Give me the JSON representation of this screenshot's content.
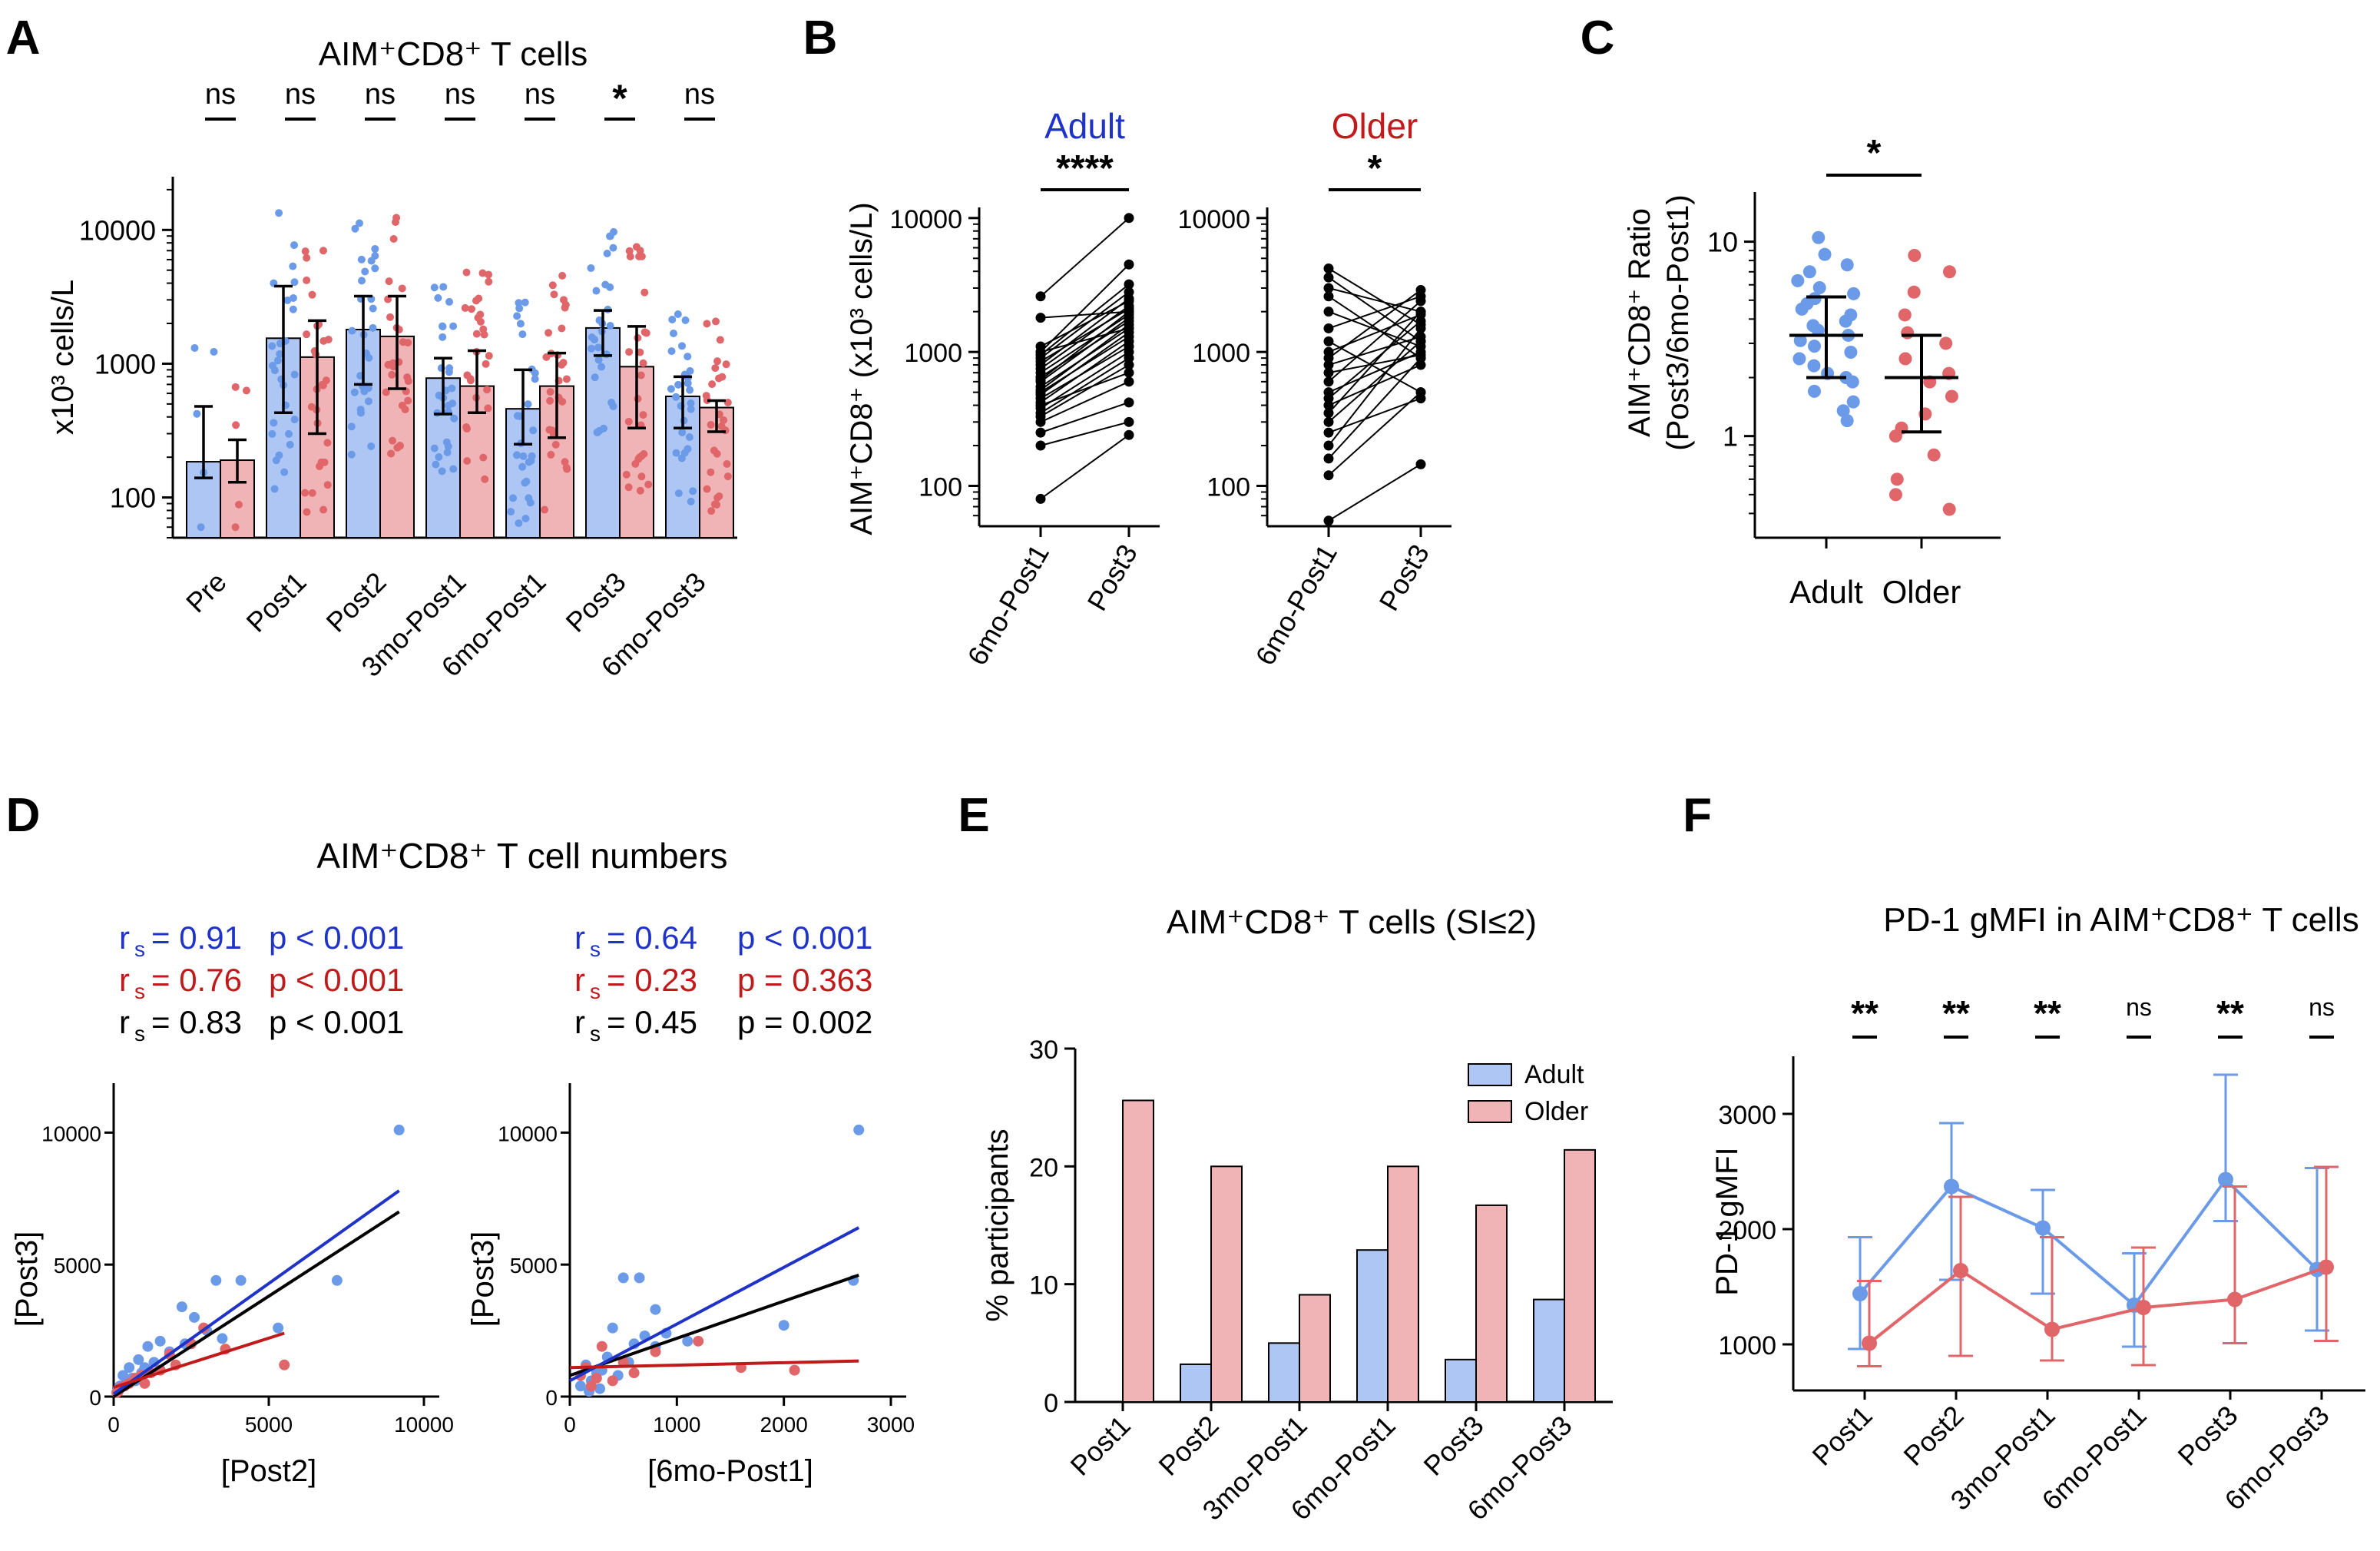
{
  "colors": {
    "adult": "#6a9ae8",
    "adult_bar": "#aec6f4",
    "adult_line": "#1f33c9",
    "older": "#e0666a",
    "older_bar": "#f0b4b6",
    "older_line": "#c01a1a",
    "black": "#000000"
  },
  "chart_data": [
    {
      "panel": "A",
      "type": "bar",
      "title": "AIM⁺CD8⁺ T cells",
      "ylabel": "x10³ cells/L",
      "yscale": "log",
      "ylim": [
        50,
        25000
      ],
      "yticks": [
        100,
        1000,
        10000
      ],
      "ytick_labels": [
        "100",
        "1000",
        "10000"
      ],
      "categories": [
        "Pre",
        "Post1",
        "Post2",
        "3mo-Post1",
        "6mo-Post1",
        "Post3",
        "6mo-Post3"
      ],
      "series": [
        {
          "name": "Adult",
          "values": [
            185,
            1550,
            1800,
            780,
            460,
            1850,
            570
          ],
          "err_low": [
            140,
            430,
            700,
            420,
            250,
            1150,
            330
          ],
          "err_high": [
            480,
            3800,
            3200,
            1100,
            900,
            2500,
            800
          ]
        },
        {
          "name": "Older",
          "values": [
            190,
            1120,
            1600,
            680,
            680,
            950,
            470
          ],
          "err_low": [
            130,
            300,
            650,
            430,
            280,
            330,
            310
          ],
          "err_high": [
            270,
            2100,
            3200,
            1250,
            1200,
            1900,
            530
          ]
        }
      ],
      "significance": [
        "ns",
        "ns",
        "ns",
        "ns",
        "ns",
        "*",
        "ns"
      ]
    },
    {
      "panel": "B",
      "type": "line",
      "ylabel": "AIM⁺CD8⁺ (x10³ cells/L)",
      "yscale": "log",
      "ylim": [
        50,
        12000
      ],
      "yticks": [
        100,
        1000,
        10000
      ],
      "ytick_labels": [
        "100",
        "1000",
        "10000"
      ],
      "categories": [
        "6mo-Post1",
        "Post3"
      ],
      "groups": [
        {
          "name": "Adult",
          "significance": "****",
          "pairs": [
            [
              80,
              240
            ],
            [
              200,
              300
            ],
            [
              250,
              420
            ],
            [
              300,
              600
            ],
            [
              330,
              800
            ],
            [
              350,
              900
            ],
            [
              380,
              1000
            ],
            [
              400,
              700
            ],
            [
              420,
              1200
            ],
            [
              450,
              1100
            ],
            [
              480,
              1400
            ],
            [
              500,
              1300
            ],
            [
              520,
              1600
            ],
            [
              550,
              1500
            ],
            [
              600,
              1800
            ],
            [
              620,
              2000
            ],
            [
              650,
              1700
            ],
            [
              700,
              1900
            ],
            [
              750,
              2200
            ],
            [
              800,
              2500
            ],
            [
              850,
              2100
            ],
            [
              900,
              2800
            ],
            [
              950,
              3200
            ],
            [
              1000,
              4500
            ],
            [
              1000,
              1500
            ],
            [
              1100,
              2400
            ],
            [
              1800,
              2000
            ],
            [
              2600,
              10000
            ]
          ]
        },
        {
          "name": "Older",
          "significance": "*",
          "pairs": [
            [
              55,
              145
            ],
            [
              120,
              500
            ],
            [
              160,
              900
            ],
            [
              200,
              1500
            ],
            [
              250,
              450
            ],
            [
              300,
              1200
            ],
            [
              350,
              2000
            ],
            [
              400,
              800
            ],
            [
              450,
              1700
            ],
            [
              500,
              1000
            ],
            [
              600,
              2400
            ],
            [
              700,
              950
            ],
            [
              800,
              1300
            ],
            [
              900,
              2900
            ],
            [
              1000,
              1900
            ],
            [
              1200,
              500
            ],
            [
              1500,
              2600
            ],
            [
              2000,
              1100
            ],
            [
              2600,
              900
            ],
            [
              3000,
              2000
            ],
            [
              3600,
              1200
            ],
            [
              4200,
              1600
            ]
          ]
        }
      ]
    },
    {
      "panel": "C",
      "type": "scatter",
      "ylabel": "AIM⁺CD8⁺ Ratio",
      "ylabel2": "(Post3/6mo-Post1)",
      "yscale": "log",
      "ylim": [
        0.3,
        18
      ],
      "yticks": [
        1,
        10
      ],
      "ytick_labels": [
        "1",
        "10"
      ],
      "categories": [
        "Adult",
        "Older"
      ],
      "significance": "*",
      "groups": [
        {
          "name": "Adult",
          "median": 3.3,
          "err": [
            2.0,
            5.2
          ],
          "values": [
            1.2,
            1.35,
            1.5,
            1.7,
            1.9,
            2.0,
            2.1,
            2.3,
            2.5,
            2.7,
            2.9,
            3.1,
            3.3,
            3.5,
            3.7,
            3.9,
            4.2,
            4.5,
            4.8,
            5.1,
            5.4,
            5.8,
            6.3,
            7.0,
            7.6,
            8.6,
            10.5
          ]
        },
        {
          "name": "Older",
          "median": 2.0,
          "err": [
            1.05,
            3.3
          ],
          "values": [
            0.42,
            0.5,
            0.6,
            0.8,
            1.0,
            1.1,
            1.3,
            1.6,
            1.9,
            2.1,
            2.5,
            3.0,
            3.4,
            4.2,
            5.5,
            7.0,
            8.5
          ]
        }
      ]
    },
    {
      "panel": "D",
      "type": "scatter",
      "title": "AIM⁺CD8⁺ T cell numbers",
      "subplots": [
        {
          "xlabel": "[Post2]",
          "ylabel": "[Post3]",
          "xlim": [
            0,
            10000
          ],
          "ylim": [
            0,
            11000
          ],
          "xticks": [
            0,
            5000,
            10000
          ],
          "xtick_labels": [
            "0",
            "5000",
            "10000"
          ],
          "yticks": [
            0,
            5000,
            10000
          ],
          "ytick_labels": [
            "0",
            "5000",
            "10000"
          ],
          "stats": [
            {
              "group": "Adult",
              "r_label": "= 0.91",
              "p_label": "p < 0.001"
            },
            {
              "group": "Older",
              "r_label": "= 0.76",
              "p_label": "p < 0.001"
            },
            {
              "group": "All",
              "r_label": "= 0.83",
              "p_label": "p < 0.001"
            }
          ],
          "fits": {
            "Adult": {
              "x": [
                0,
                9200
              ],
              "y": [
                100,
                7800
              ]
            },
            "Older": {
              "x": [
                0,
                5500
              ],
              "y": [
                350,
                2400
              ]
            },
            "All": {
              "x": [
                0,
                9200
              ],
              "y": [
                0,
                7000
              ]
            }
          },
          "points": {
            "Adult": [
              [
                9200,
                10100
              ],
              [
                7200,
                4400
              ],
              [
                5300,
                2600
              ],
              [
                4100,
                4400
              ],
              [
                3300,
                4400
              ],
              [
                2600,
                3000
              ],
              [
                3000,
                2500
              ],
              [
                2300,
                2000
              ],
              [
                1800,
                1700
              ],
              [
                1500,
                2100
              ],
              [
                1300,
                1300
              ],
              [
                1100,
                1900
              ],
              [
                900,
                900
              ],
              [
                800,
                1400
              ],
              [
                600,
                700
              ],
              [
                500,
                1100
              ],
              [
                400,
                500
              ],
              [
                300,
                800
              ],
              [
                200,
                400
              ],
              [
                2200,
                3400
              ],
              [
                3500,
                2200
              ],
              [
                1000,
                1100
              ],
              [
                700,
                600
              ],
              [
                150,
                300
              ]
            ],
            "Older": [
              [
                5500,
                1200
              ],
              [
                3600,
                1800
              ],
              [
                2500,
                2000
              ],
              [
                2000,
                1200
              ],
              [
                1800,
                1600
              ],
              [
                1500,
                1000
              ],
              [
                1200,
                900
              ],
              [
                900,
                800
              ],
              [
                700,
                700
              ],
              [
                500,
                500
              ],
              [
                350,
                400
              ],
              [
                250,
                350
              ],
              [
                150,
                200
              ],
              [
                100,
                150
              ],
              [
                1000,
                500
              ],
              [
                2900,
                2600
              ]
            ]
          }
        },
        {
          "xlabel": "[6mo-Post1]",
          "ylabel": "[Post3]",
          "xlim": [
            0,
            3000
          ],
          "ylim": [
            0,
            11000
          ],
          "xticks": [
            0,
            1000,
            2000,
            3000
          ],
          "xtick_labels": [
            "0",
            "1000",
            "2000",
            "3000"
          ],
          "yticks": [
            0,
            5000,
            10000
          ],
          "ytick_labels": [
            "0",
            "5000",
            "10000"
          ],
          "stats": [
            {
              "group": "Adult",
              "r_label": "= 0.64",
              "p_label": "p < 0.001"
            },
            {
              "group": "Older",
              "r_label": "= 0.23",
              "p_label": "p = 0.363"
            },
            {
              "group": "All",
              "r_label": "= 0.45",
              "p_label": "p = 0.002"
            }
          ],
          "fits": {
            "Adult": {
              "x": [
                0,
                2700
              ],
              "y": [
                600,
                6400
              ]
            },
            "Older": {
              "x": [
                0,
                2700
              ],
              "y": [
                1100,
                1350
              ]
            },
            "All": {
              "x": [
                0,
                2700
              ],
              "y": [
                800,
                4600
              ]
            }
          },
          "points": {
            "Adult": [
              [
                2700,
                10100
              ],
              [
                2650,
                4400
              ],
              [
                2000,
                2700
              ],
              [
                800,
                3300
              ],
              [
                650,
                4500
              ],
              [
                500,
                4500
              ],
              [
                900,
                2400
              ],
              [
                1100,
                2100
              ],
              [
                700,
                2300
              ],
              [
                600,
                2000
              ],
              [
                400,
                2600
              ],
              [
                350,
                1500
              ],
              [
                300,
                1000
              ],
              [
                250,
                900
              ],
              [
                200,
                600
              ],
              [
                150,
                1200
              ],
              [
                100,
                400
              ],
              [
                450,
                800
              ],
              [
                800,
                1900
              ],
              [
                550,
                1300
              ],
              [
                280,
                300
              ],
              [
                180,
                200
              ]
            ],
            "Older": [
              [
                1200,
                2100
              ],
              [
                1600,
                1100
              ],
              [
                2100,
                1000
              ],
              [
                800,
                1700
              ],
              [
                500,
                1300
              ],
              [
                300,
                1900
              ],
              [
                250,
                700
              ],
              [
                200,
                400
              ],
              [
                100,
                800
              ],
              [
                150,
                1100
              ],
              [
                400,
                600
              ],
              [
                600,
                900
              ]
            ]
          }
        }
      ]
    },
    {
      "panel": "E",
      "type": "bar",
      "title": "AIM⁺CD8⁺ T cells (SI≤2)",
      "ylabel": "% participants",
      "ylim": [
        0,
        30
      ],
      "yticks": [
        0,
        10,
        20,
        30
      ],
      "ytick_labels": [
        "0",
        "10",
        "20",
        "30"
      ],
      "categories": [
        "Post1",
        "Post2",
        "3mo-Post1",
        "6mo-Post1",
        "Post3",
        "6mo-Post3"
      ],
      "series": [
        {
          "name": "Adult",
          "values": [
            0,
            3.2,
            5.0,
            12.9,
            3.6,
            8.7
          ]
        },
        {
          "name": "Older",
          "values": [
            25.6,
            20.0,
            9.1,
            20.0,
            16.7,
            21.4
          ]
        }
      ],
      "legend": [
        "Adult",
        "Older"
      ]
    },
    {
      "panel": "F",
      "type": "line",
      "title": "PD-1 gMFI in AIM⁺CD8⁺ T cells",
      "ylabel": "PD-1 gMFI",
      "ylim": [
        600,
        3500
      ],
      "yticks": [
        1000,
        2000,
        3000
      ],
      "ytick_labels": [
        "1000",
        "2000",
        "3000"
      ],
      "categories": [
        "Post1",
        "Post2",
        "3mo-Post1",
        "6mo-Post1",
        "Post3",
        "6mo-Post3"
      ],
      "series": [
        {
          "name": "Adult",
          "values": [
            1440,
            2370,
            2010,
            1340,
            2430,
            1650
          ],
          "err_low": [
            960,
            1560,
            1440,
            980,
            2070,
            1120
          ],
          "err_high": [
            1930,
            2920,
            2340,
            1790,
            3340,
            2530
          ]
        },
        {
          "name": "Older",
          "values": [
            1010,
            1640,
            1130,
            1320,
            1390,
            1670
          ],
          "err_low": [
            810,
            900,
            860,
            820,
            1010,
            1030
          ],
          "err_high": [
            1550,
            2280,
            1930,
            1840,
            2370,
            2540
          ]
        }
      ],
      "significance": [
        "**",
        "**",
        "**",
        "ns",
        "**",
        "ns"
      ]
    }
  ],
  "panel_letters": [
    "A",
    "B",
    "C",
    "D",
    "E",
    "F"
  ],
  "legend_labels": {
    "adult": "Adult",
    "older": "Older"
  },
  "r_symbol": "r",
  "r_subscript": "s"
}
